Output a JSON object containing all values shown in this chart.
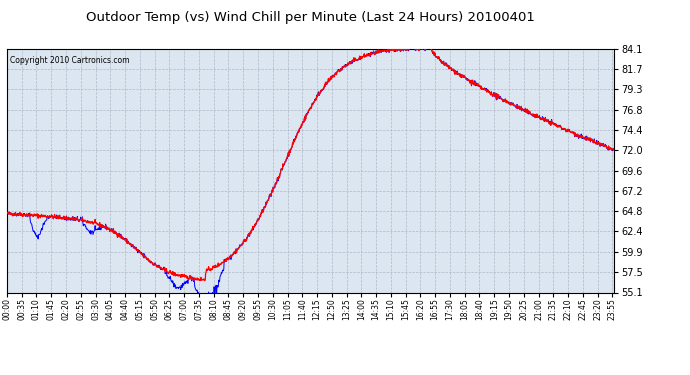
{
  "title": "Outdoor Temp (vs) Wind Chill per Minute (Last 24 Hours) 20100401",
  "copyright": "Copyright 2010 Cartronics.com",
  "background_color": "#ffffff",
  "plot_bg_color": "#dce6f0",
  "grid_color": "#b0b8c8",
  "line_color_temp": "#ff0000",
  "line_color_chill": "#0000ff",
  "yticks": [
    55.1,
    57.5,
    59.9,
    62.4,
    64.8,
    67.2,
    69.6,
    72.0,
    74.4,
    76.8,
    79.3,
    81.7,
    84.1
  ],
  "ymin": 55.1,
  "ymax": 84.1,
  "xtick_labels": [
    "00:00",
    "00:35",
    "01:10",
    "01:45",
    "02:20",
    "02:55",
    "03:30",
    "04:05",
    "04:40",
    "05:15",
    "05:50",
    "06:25",
    "07:00",
    "07:35",
    "08:10",
    "08:45",
    "09:20",
    "09:55",
    "10:30",
    "11:05",
    "11:40",
    "12:15",
    "12:50",
    "13:25",
    "14:00",
    "14:35",
    "15:10",
    "15:45",
    "16:20",
    "16:55",
    "17:30",
    "18:05",
    "18:40",
    "19:15",
    "19:50",
    "20:25",
    "21:00",
    "21:35",
    "22:10",
    "22:45",
    "23:20",
    "23:55"
  ]
}
